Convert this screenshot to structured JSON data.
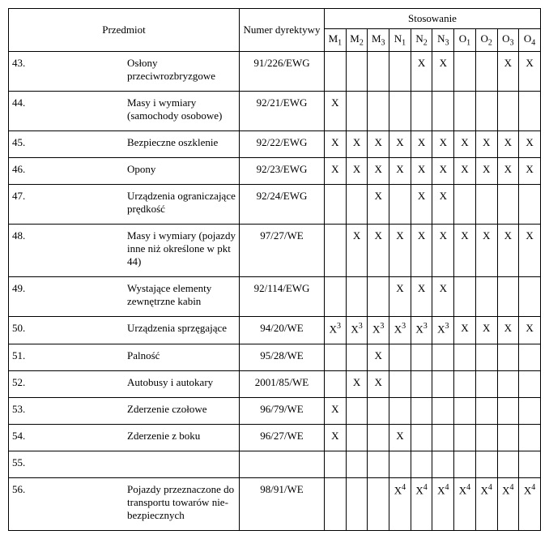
{
  "headers": {
    "przedmiot": "Przedmiot",
    "numer": "Numer dyrek­tywy",
    "stosowanie": "Stosowanie",
    "cols": [
      {
        "base": "M",
        "sub": "1"
      },
      {
        "base": "M",
        "sub": "2"
      },
      {
        "base": "M",
        "sub": "3"
      },
      {
        "base": "N",
        "sub": "1"
      },
      {
        "base": "N",
        "sub": "2"
      },
      {
        "base": "N",
        "sub": "3"
      },
      {
        "base": "O",
        "sub": "1"
      },
      {
        "base": "O",
        "sub": "2"
      },
      {
        "base": "O",
        "sub": "3"
      },
      {
        "base": "O",
        "sub": "4"
      }
    ]
  },
  "rows": [
    {
      "num": "43.",
      "subject": "Osłony przeciwrozbryzgowe",
      "dir": "91/226/EWG",
      "apps": [
        {
          "v": ""
        },
        {
          "v": ""
        },
        {
          "v": ""
        },
        {
          "v": ""
        },
        {
          "v": "X"
        },
        {
          "v": "X"
        },
        {
          "v": ""
        },
        {
          "v": ""
        },
        {
          "v": "X"
        },
        {
          "v": "X"
        }
      ]
    },
    {
      "num": "44.",
      "subject": "Masy i wymiary (samochody osobowe)",
      "dir": "92/21/EWG",
      "apps": [
        {
          "v": "X"
        },
        {
          "v": ""
        },
        {
          "v": ""
        },
        {
          "v": ""
        },
        {
          "v": ""
        },
        {
          "v": ""
        },
        {
          "v": ""
        },
        {
          "v": ""
        },
        {
          "v": ""
        },
        {
          "v": ""
        }
      ]
    },
    {
      "num": "45.",
      "subject": "Bezpieczne oszklenie",
      "dir": "92/22/EWG",
      "apps": [
        {
          "v": "X"
        },
        {
          "v": "X"
        },
        {
          "v": "X"
        },
        {
          "v": "X"
        },
        {
          "v": "X"
        },
        {
          "v": "X"
        },
        {
          "v": "X"
        },
        {
          "v": "X"
        },
        {
          "v": "X"
        },
        {
          "v": "X"
        }
      ]
    },
    {
      "num": "46.",
      "subject": "Opony",
      "dir": "92/23/EWG",
      "apps": [
        {
          "v": "X"
        },
        {
          "v": "X"
        },
        {
          "v": "X"
        },
        {
          "v": "X"
        },
        {
          "v": "X"
        },
        {
          "v": "X"
        },
        {
          "v": "X"
        },
        {
          "v": "X"
        },
        {
          "v": "X"
        },
        {
          "v": "X"
        }
      ]
    },
    {
      "num": "47.",
      "subject": "Urządzenia ograniczające prędkość",
      "dir": "92/24/EWG",
      "apps": [
        {
          "v": ""
        },
        {
          "v": ""
        },
        {
          "v": "X"
        },
        {
          "v": ""
        },
        {
          "v": "X"
        },
        {
          "v": "X"
        },
        {
          "v": ""
        },
        {
          "v": ""
        },
        {
          "v": ""
        },
        {
          "v": ""
        }
      ]
    },
    {
      "num": "48.",
      "subject": "Masy i wymiary (pojazdy inne niż określone w pkt 44)",
      "dir": "97/27/WE",
      "apps": [
        {
          "v": ""
        },
        {
          "v": "X"
        },
        {
          "v": "X"
        },
        {
          "v": "X"
        },
        {
          "v": "X"
        },
        {
          "v": "X"
        },
        {
          "v": "X"
        },
        {
          "v": "X"
        },
        {
          "v": "X"
        },
        {
          "v": "X"
        }
      ]
    },
    {
      "num": "49.",
      "subject": "Wystające elementy zewnętrzne kabin",
      "dir": "92/114/EWG",
      "apps": [
        {
          "v": ""
        },
        {
          "v": ""
        },
        {
          "v": ""
        },
        {
          "v": "X"
        },
        {
          "v": "X"
        },
        {
          "v": "X"
        },
        {
          "v": ""
        },
        {
          "v": ""
        },
        {
          "v": ""
        },
        {
          "v": ""
        }
      ]
    },
    {
      "num": "50.",
      "subject": "Urządzenia sprzęgające",
      "dir": "94/20/WE",
      "apps": [
        {
          "v": "X",
          "s": "3"
        },
        {
          "v": "X",
          "s": "3"
        },
        {
          "v": "X",
          "s": "3"
        },
        {
          "v": "X",
          "s": "3"
        },
        {
          "v": "X",
          "s": "3"
        },
        {
          "v": "X",
          "s": "3"
        },
        {
          "v": "X"
        },
        {
          "v": "X"
        },
        {
          "v": "X"
        },
        {
          "v": "X"
        }
      ]
    },
    {
      "num": "51.",
      "subject": "Palność",
      "dir": "95/28/WE",
      "apps": [
        {
          "v": ""
        },
        {
          "v": ""
        },
        {
          "v": "X"
        },
        {
          "v": ""
        },
        {
          "v": ""
        },
        {
          "v": ""
        },
        {
          "v": ""
        },
        {
          "v": ""
        },
        {
          "v": ""
        },
        {
          "v": ""
        }
      ]
    },
    {
      "num": "52.",
      "subject": "Autobusy i autokary",
      "dir": "2001/85/WE",
      "apps": [
        {
          "v": ""
        },
        {
          "v": "X"
        },
        {
          "v": "X"
        },
        {
          "v": ""
        },
        {
          "v": ""
        },
        {
          "v": ""
        },
        {
          "v": ""
        },
        {
          "v": ""
        },
        {
          "v": ""
        },
        {
          "v": ""
        }
      ]
    },
    {
      "num": "53.",
      "subject": "Zderzenie czołowe",
      "dir": "96/79/WE",
      "apps": [
        {
          "v": "X"
        },
        {
          "v": ""
        },
        {
          "v": ""
        },
        {
          "v": ""
        },
        {
          "v": ""
        },
        {
          "v": ""
        },
        {
          "v": ""
        },
        {
          "v": ""
        },
        {
          "v": ""
        },
        {
          "v": ""
        }
      ]
    },
    {
      "num": "54.",
      "subject": "Zderzenie z boku",
      "dir": "96/27/WE",
      "apps": [
        {
          "v": "X"
        },
        {
          "v": ""
        },
        {
          "v": ""
        },
        {
          "v": "X"
        },
        {
          "v": ""
        },
        {
          "v": ""
        },
        {
          "v": ""
        },
        {
          "v": ""
        },
        {
          "v": ""
        },
        {
          "v": ""
        }
      ]
    },
    {
      "num": "55.",
      "subject": "",
      "dir": "",
      "apps": [
        {
          "v": ""
        },
        {
          "v": ""
        },
        {
          "v": ""
        },
        {
          "v": ""
        },
        {
          "v": ""
        },
        {
          "v": ""
        },
        {
          "v": ""
        },
        {
          "v": ""
        },
        {
          "v": ""
        },
        {
          "v": ""
        }
      ]
    },
    {
      "num": "56.",
      "subject": "Pojazdy przeznaczone do transportu towarów nie­bezpiecznych",
      "dir": "98/91/WE",
      "apps": [
        {
          "v": ""
        },
        {
          "v": ""
        },
        {
          "v": ""
        },
        {
          "v": "X",
          "s": "4"
        },
        {
          "v": "X",
          "s": "4"
        },
        {
          "v": "X",
          "s": "4"
        },
        {
          "v": "X",
          "s": "4"
        },
        {
          "v": "X",
          "s": "4"
        },
        {
          "v": "X",
          "s": "4"
        },
        {
          "v": "X",
          "s": "4"
        }
      ]
    }
  ]
}
